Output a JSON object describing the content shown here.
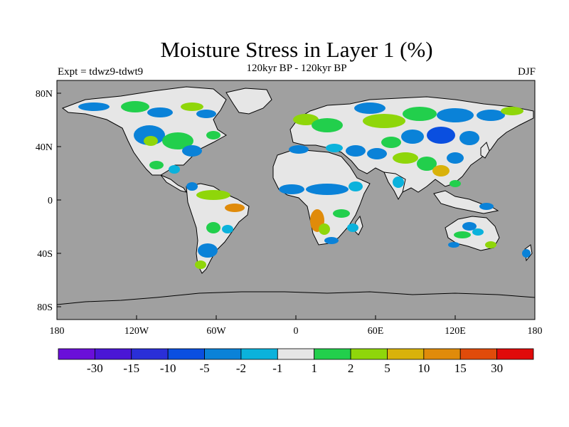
{
  "title": "Moisture Stress in Layer 1 (%)",
  "subtitle": "120kyr BP - 120kyr BP",
  "experiment_label": "Expt = tdwz9-tdwt9",
  "season": "DJF",
  "axes": {
    "x_ticks": [
      "180",
      "120W",
      "60W",
      "0",
      "60E",
      "120E",
      "180"
    ],
    "y_ticks": [
      "80N",
      "40N",
      "0",
      "40S",
      "80S"
    ]
  },
  "colorbar": {
    "colors": [
      "#6a0fd9",
      "#4a16d6",
      "#2a2fd8",
      "#0a4fe0",
      "#0a82d8",
      "#0bb2dc",
      "#e6e6e6",
      "#22cf4c",
      "#8fd60a",
      "#d9b20a",
      "#e08b0a",
      "#e04b0a",
      "#e00a0a"
    ],
    "labels": [
      "-30",
      "-15",
      "-10",
      "-5",
      "-2",
      "-1",
      "1",
      "2",
      "5",
      "10",
      "15",
      "30"
    ]
  },
  "map_colors": {
    "ocean": "#a0a0a0",
    "land_neutral": "#e6e6e6",
    "blue": "#0a82d8",
    "cyan": "#0bb2dc",
    "dark_blue": "#0a4fe0",
    "green": "#22cf4c",
    "lime": "#8fd60a",
    "yellow": "#d9b20a",
    "orange": "#e08b0a"
  }
}
